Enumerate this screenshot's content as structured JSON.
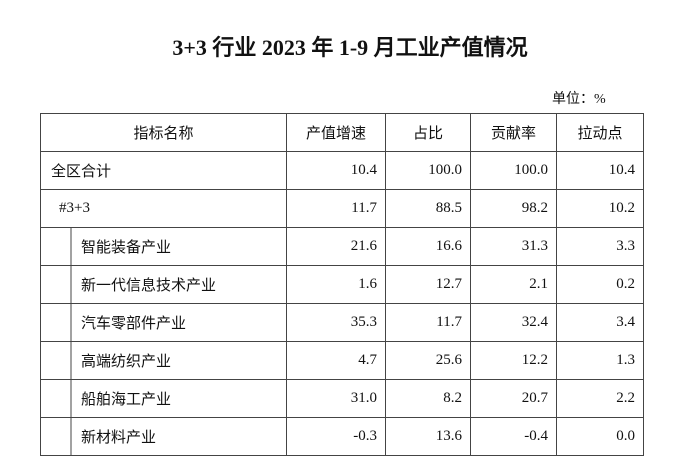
{
  "header": {
    "title": "3+3 行业 2023 年 1-9 月工业产值情况",
    "unit": "单位：%"
  },
  "table": {
    "columns": [
      "指标名称",
      "产值增速",
      "占比",
      "贡献率",
      "拉动点"
    ],
    "rows": [
      [
        "全区合计",
        "10.4",
        "100.0",
        "100.0",
        "10.4"
      ],
      [
        "#3+3",
        "11.7",
        "88.5",
        "98.2",
        "10.2"
      ],
      [
        "智能装备产业",
        "21.6",
        "16.6",
        "31.3",
        "3.3"
      ],
      [
        "新一代信息技术产业",
        "1.6",
        "12.7",
        "2.1",
        "0.2"
      ],
      [
        "汽车零部件产业",
        "35.3",
        "11.7",
        "32.4",
        "3.4"
      ],
      [
        "高端纺织产业",
        "4.7",
        "25.6",
        "12.2",
        "1.3"
      ],
      [
        "船舶海工产业",
        "31.0",
        "8.2",
        "20.7",
        "2.2"
      ],
      [
        "新材料产业",
        "-0.3",
        "13.6",
        "-0.4",
        "0.0"
      ]
    ]
  }
}
